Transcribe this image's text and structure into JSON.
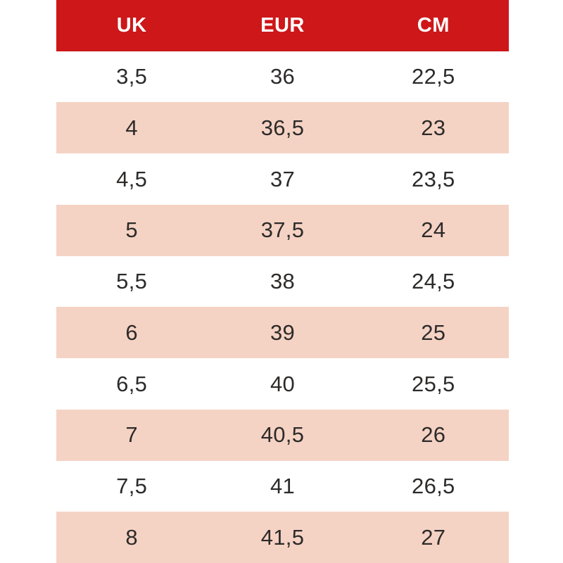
{
  "table": {
    "headers": [
      "UK",
      "EUR",
      "CM"
    ],
    "rows": [
      [
        "3,5",
        "36",
        "22,5"
      ],
      [
        "4",
        "36,5",
        "23"
      ],
      [
        "4,5",
        "37",
        "23,5"
      ],
      [
        "5",
        "37,5",
        "24"
      ],
      [
        "5,5",
        "38",
        "24,5"
      ],
      [
        "6",
        "39",
        "25"
      ],
      [
        "6,5",
        "40",
        "25,5"
      ],
      [
        "7",
        "40,5",
        "26"
      ],
      [
        "7,5",
        "41",
        "26,5"
      ],
      [
        "8",
        "41,5",
        "27"
      ]
    ],
    "colors": {
      "header_bg": "#cd1719",
      "header_text": "#ffffff",
      "row_bg": "#ffffff",
      "row_alt_bg": "#f5d3c4",
      "cell_text": "#2d2b2a"
    }
  },
  "chart_data": {
    "type": "table",
    "title": "",
    "columns": [
      "UK",
      "EUR",
      "CM"
    ],
    "rows": [
      [
        3.5,
        36,
        22.5
      ],
      [
        4,
        36.5,
        23
      ],
      [
        4.5,
        37,
        23.5
      ],
      [
        5,
        37.5,
        24
      ],
      [
        5.5,
        38,
        24.5
      ],
      [
        6,
        39,
        25
      ],
      [
        6.5,
        40,
        25.5
      ],
      [
        7,
        40.5,
        26
      ],
      [
        7.5,
        41,
        26.5
      ],
      [
        8,
        41.5,
        27
      ]
    ],
    "layout": {
      "header_position": "top",
      "row_striping": "alternating white/pink starting white",
      "decimal_separator": ","
    }
  }
}
